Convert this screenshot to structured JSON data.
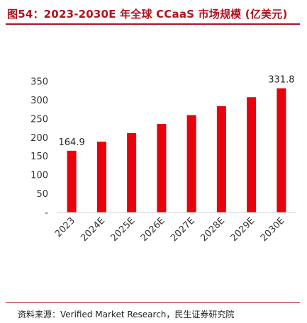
{
  "figure": {
    "title": "图54：2023-2030E 年全球 CCaaS 市场规模 (亿美元)",
    "source": "资料来源：Verified Market Research，民生证券研究院"
  },
  "chart_data": {
    "type": "bar",
    "title": "",
    "xlabel": "",
    "ylabel": "",
    "categories": [
      "2023",
      "2024E",
      "2025E",
      "2026E",
      "2027E",
      "2028E",
      "2029E",
      "2030E"
    ],
    "series": [
      {
        "values": [
          164.9,
          189.3,
          212.2,
          236.3,
          260.1,
          284.0,
          307.9,
          331.8
        ]
      }
    ],
    "data_labels": [
      {
        "index": 0,
        "text": "164.9"
      },
      {
        "index": 7,
        "text": "331.8"
      }
    ],
    "ylim": [
      0,
      350
    ],
    "yticks": [
      0,
      50,
      100,
      150,
      200,
      250,
      300,
      350
    ],
    "ytick_labels": [
      "-",
      "50",
      "100",
      "150",
      "200",
      "250",
      "300",
      "350"
    ],
    "bar_color": "#e8000b",
    "grid": false,
    "legend": "none"
  }
}
